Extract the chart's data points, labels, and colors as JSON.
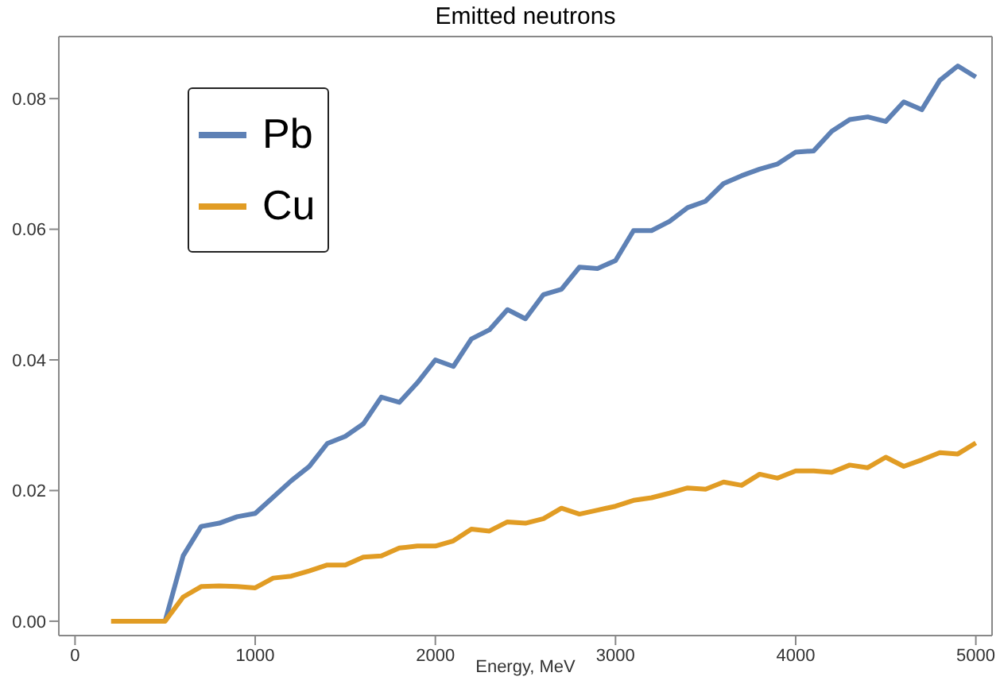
{
  "chart_data": {
    "type": "line",
    "title": "Emitted neutrons",
    "xlabel": "Energy, MeV",
    "x": [
      200,
      300,
      400,
      500,
      600,
      700,
      800,
      900,
      1000,
      1100,
      1200,
      1300,
      1400,
      1500,
      1600,
      1700,
      1800,
      1900,
      2000,
      2100,
      2200,
      2300,
      2400,
      2500,
      2600,
      2700,
      2800,
      2900,
      3000,
      3100,
      3200,
      3300,
      3400,
      3500,
      3600,
      3700,
      3800,
      3900,
      4000,
      4100,
      4200,
      4300,
      4400,
      4500,
      4600,
      4700,
      4800,
      4900,
      5000
    ],
    "series": [
      {
        "name": "Pb",
        "color": "#5e81b5",
        "values": [
          null,
          null,
          null,
          0,
          0.01,
          0.0145,
          0.015,
          0.016,
          0.0165,
          0.019,
          0.0215,
          0.0237,
          0.0272,
          0.0283,
          0.0302,
          0.0343,
          0.0335,
          0.0365,
          0.04,
          0.039,
          0.0432,
          0.0446,
          0.0477,
          0.0463,
          0.05,
          0.0508,
          0.0542,
          0.054,
          0.0552,
          0.0598,
          0.0598,
          0.0612,
          0.0633,
          0.0643,
          0.067,
          0.0682,
          0.0692,
          0.07,
          0.0718,
          0.072,
          0.075,
          0.0768,
          0.0772,
          0.0765,
          0.0795,
          0.0783,
          0.0828,
          0.085,
          0.0833
        ]
      },
      {
        "name": "Cu",
        "color": "#e19c24",
        "values": [
          0,
          0,
          0,
          0,
          0.0037,
          0.0053,
          0.0054,
          0.0053,
          0.0051,
          0.0066,
          0.0069,
          0.0077,
          0.0086,
          0.0086,
          0.0098,
          0.01,
          0.0112,
          0.0115,
          0.0115,
          0.0123,
          0.0141,
          0.0138,
          0.0152,
          0.015,
          0.0157,
          0.0173,
          0.0164,
          0.017,
          0.0176,
          0.0185,
          0.0189,
          0.0196,
          0.0204,
          0.0202,
          0.0213,
          0.0208,
          0.0225,
          0.0219,
          0.023,
          0.023,
          0.0228,
          0.0239,
          0.0235,
          0.0251,
          0.0237,
          0.0247,
          0.0258,
          0.0256,
          0.0273
        ]
      }
    ],
    "xlim": [
      -90,
      5090
    ],
    "xticks": [
      0,
      1000,
      2000,
      3000,
      4000,
      5000
    ],
    "ylim": [
      -0.0022,
      0.0895
    ],
    "yticks": [
      {
        "value": 0,
        "label": "0.00"
      },
      {
        "value": 0.02,
        "label": "0.02"
      },
      {
        "value": 0.04,
        "label": "0.04"
      },
      {
        "value": 0.06,
        "label": "0.06"
      },
      {
        "value": 0.08,
        "label": "0.08"
      }
    ],
    "legend": "top left",
    "grid": false,
    "marker": "none",
    "line_style": "solid"
  }
}
